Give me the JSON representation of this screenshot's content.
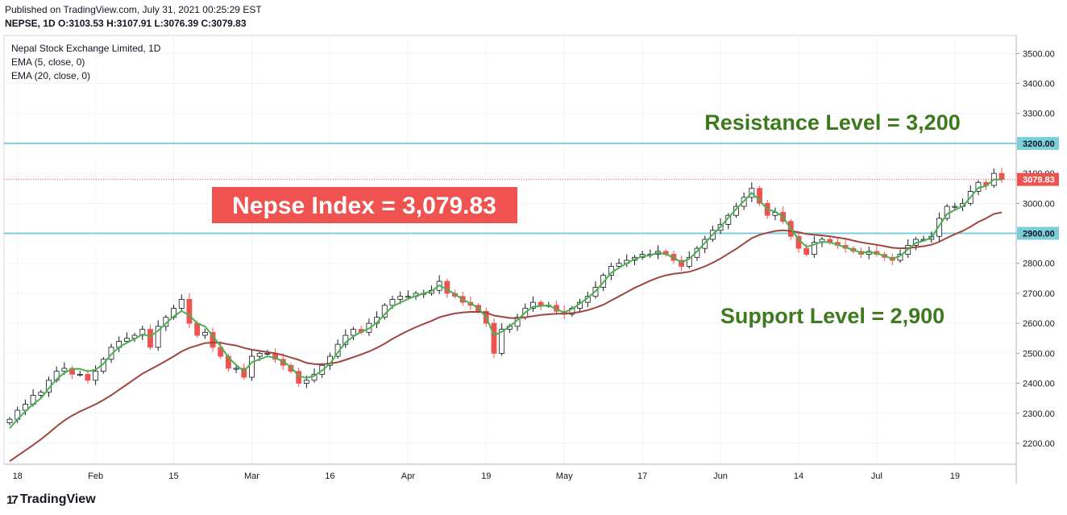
{
  "header": {
    "published": "Published on TradingView.com, July 31, 2021 00:25:29 EST",
    "ohlc": "NEPSE, 1D O:3103.53 H:3107.91 L:3076.39 C:3079.83"
  },
  "footer": {
    "brand": "TradingView",
    "logo": "17"
  },
  "colors": {
    "up": "#26a69a",
    "down": "#ef5350",
    "ema5": "#4caf50",
    "ema20": "#a0463f",
    "levels": "#7ccfd8",
    "annotation": "#3d7a1e",
    "price_badge": "#ef5350"
  },
  "chart_data": {
    "type": "candlestick",
    "title": "Nepal Stock Exchange Limited, 1D",
    "indicators": [
      "EMA (5, close, 0)",
      "EMA (20, close, 0)"
    ],
    "ylim": [
      2130,
      3560
    ],
    "y_ticks": [
      "2200.00",
      "2300.00",
      "2400.00",
      "2500.00",
      "2600.00",
      "2700.00",
      "2800.00",
      "2900.00",
      "3000.00",
      "3100.00",
      "3200.00",
      "3300.00",
      "3400.00",
      "3500.00"
    ],
    "x_ticks": [
      {
        "label": "18",
        "i": 1
      },
      {
        "label": "Feb",
        "i": 11
      },
      {
        "label": "15",
        "i": 21
      },
      {
        "label": "Mar",
        "i": 31
      },
      {
        "label": "16",
        "i": 41
      },
      {
        "label": "Apr",
        "i": 51
      },
      {
        "label": "19",
        "i": 61
      },
      {
        "label": "May",
        "i": 71
      },
      {
        "label": "17",
        "i": 81
      },
      {
        "label": "Jun",
        "i": 91
      },
      {
        "label": "14",
        "i": 101
      },
      {
        "label": "Jul",
        "i": 111
      },
      {
        "label": "19",
        "i": 121
      }
    ],
    "closes": [
      2280,
      2310,
      2330,
      2360,
      2370,
      2410,
      2440,
      2450,
      2430,
      2430,
      2410,
      2440,
      2480,
      2520,
      2540,
      2550,
      2560,
      2580,
      2520,
      2590,
      2620,
      2650,
      2680,
      2600,
      2560,
      2570,
      2520,
      2490,
      2450,
      2450,
      2420,
      2490,
      2500,
      2500,
      2480,
      2460,
      2440,
      2400,
      2410,
      2430,
      2460,
      2490,
      2530,
      2560,
      2580,
      2570,
      2600,
      2620,
      2660,
      2680,
      2690,
      2690,
      2700,
      2700,
      2710,
      2740,
      2700,
      2690,
      2670,
      2660,
      2640,
      2600,
      2500,
      2580,
      2590,
      2620,
      2650,
      2670,
      2660,
      2660,
      2640,
      2630,
      2650,
      2670,
      2690,
      2720,
      2760,
      2790,
      2800,
      2810,
      2820,
      2830,
      2830,
      2840,
      2830,
      2810,
      2790,
      2820,
      2850,
      2880,
      2910,
      2930,
      2960,
      2990,
      3020,
      3050,
      3000,
      2960,
      2970,
      2940,
      2890,
      2850,
      2830,
      2870,
      2880,
      2870,
      2860,
      2850,
      2840,
      2830,
      2840,
      2830,
      2820,
      2810,
      2830,
      2860,
      2880,
      2880,
      2890,
      2950,
      2990,
      2990,
      3000,
      3040,
      3070,
      3060,
      3100,
      3079.83
    ],
    "ema5": [
      2250,
      2280,
      2306,
      2330,
      2350,
      2383,
      2413,
      2435,
      2448,
      2448,
      2440,
      2445,
      2465,
      2496,
      2520,
      2535,
      2548,
      2563,
      2557,
      2575,
      2600,
      2623,
      2641,
      2627,
      2600,
      2590,
      2558,
      2524,
      2486,
      2461,
      2440,
      2470,
      2480,
      2490,
      2485,
      2472,
      2455,
      2424,
      2418,
      2425,
      2443,
      2465,
      2502,
      2536,
      2556,
      2572,
      2583,
      2602,
      2630,
      2656,
      2669,
      2681,
      2691,
      2700,
      2707,
      2727,
      2712,
      2698,
      2679,
      2667,
      2650,
      2620,
      2560,
      2572,
      2589,
      2611,
      2636,
      2655,
      2658,
      2660,
      2646,
      2637,
      2648,
      2666,
      2685,
      2707,
      2737,
      2768,
      2785,
      2800,
      2814,
      2823,
      2827,
      2835,
      2831,
      2819,
      2803,
      2815,
      2840,
      2868,
      2896,
      2922,
      2952,
      2981,
      3008,
      3035,
      3010,
      2980,
      2973,
      2955,
      2915,
      2880,
      2855,
      2863,
      2872,
      2870,
      2862,
      2853,
      2845,
      2835,
      2838,
      2833,
      2825,
      2815,
      2825,
      2847,
      2868,
      2875,
      2886,
      2926,
      2964,
      2978,
      2990,
      3020,
      3052,
      3058,
      3080,
      3079
    ],
    "ema20": [
      2140,
      2158,
      2176,
      2194,
      2213,
      2234,
      2256,
      2276,
      2292,
      2306,
      2318,
      2330,
      2344,
      2360,
      2378,
      2396,
      2414,
      2432,
      2446,
      2460,
      2475,
      2490,
      2506,
      2518,
      2526,
      2534,
      2536,
      2535,
      2530,
      2526,
      2518,
      2512,
      2508,
      2504,
      2500,
      2494,
      2486,
      2478,
      2468,
      2464,
      2463,
      2466,
      2470,
      2478,
      2487,
      2496,
      2506,
      2518,
      2532,
      2548,
      2562,
      2575,
      2587,
      2598,
      2608,
      2620,
      2627,
      2633,
      2636,
      2638,
      2638,
      2636,
      2626,
      2622,
      2618,
      2617,
      2620,
      2624,
      2628,
      2630,
      2632,
      2632,
      2634,
      2638,
      2644,
      2652,
      2662,
      2676,
      2690,
      2704,
      2718,
      2730,
      2742,
      2752,
      2760,
      2765,
      2768,
      2772,
      2780,
      2790,
      2802,
      2816,
      2832,
      2848,
      2866,
      2884,
      2895,
      2902,
      2908,
      2910,
      2908,
      2904,
      2898,
      2895,
      2893,
      2890,
      2886,
      2882,
      2876,
      2870,
      2866,
      2862,
      2857,
      2852,
      2850,
      2851,
      2854,
      2857,
      2862,
      2872,
      2885,
      2897,
      2908,
      2922,
      2938,
      2950,
      2965,
      2970
    ],
    "last_price_label": "3079.83",
    "levels": [
      {
        "value": 3200,
        "label": "3200.00"
      },
      {
        "value": 2900,
        "label": "2900.00"
      }
    ],
    "annotations": {
      "index": "Nepse Index = 3,079.83",
      "resistance": "Resistance Level = 3,200",
      "support": "Support Level = 2,900"
    }
  }
}
